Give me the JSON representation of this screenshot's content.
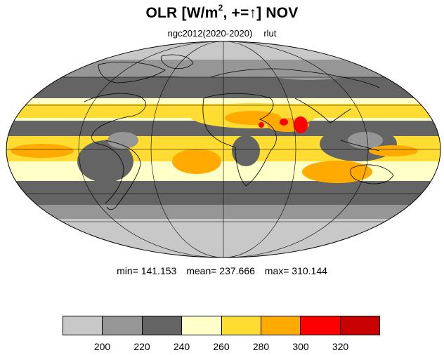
{
  "title": {
    "main": "OLR [W/m",
    "sup": "2",
    "rest": ", +=↑] NOV"
  },
  "subtitle": {
    "source": "ngc2012(2020-2020)",
    "variable": "rlut"
  },
  "stats": {
    "min": "min= 141.153",
    "mean": "mean= 237.666",
    "max": "max= 310.144"
  },
  "colorbar": {
    "colors": [
      "#c8c8c8",
      "#969696",
      "#646464",
      "#ffffc8",
      "#ffdc32",
      "#ffaa00",
      "#ff0000",
      "#c80000"
    ],
    "tick_labels": [
      "200",
      "220",
      "240",
      "260",
      "280",
      "300",
      "320"
    ]
  },
  "map_colors": {
    "lt_gray": "#c8c8c8",
    "md_gray": "#969696",
    "dk_gray": "#646464",
    "lt_yellow": "#ffffc8",
    "yellow": "#ffdc32",
    "orange": "#ffaa00",
    "red": "#ff0000",
    "coast": "#000000"
  }
}
